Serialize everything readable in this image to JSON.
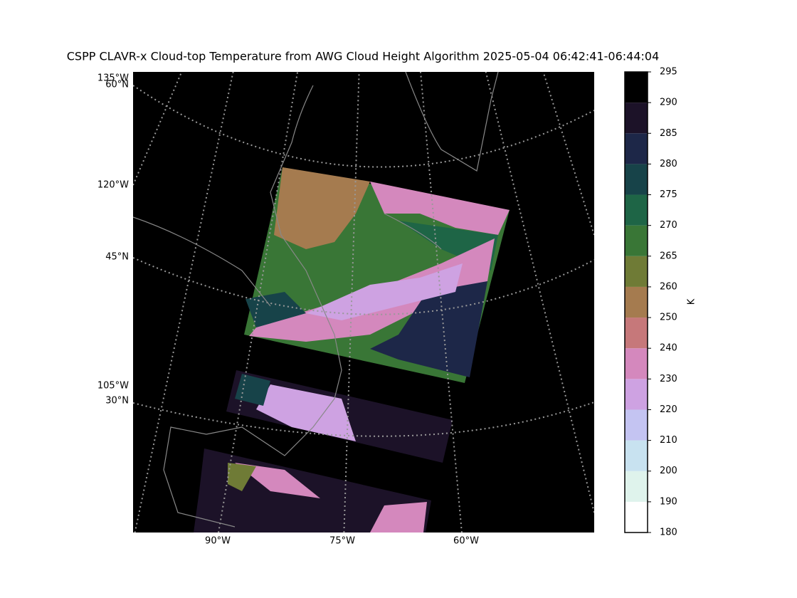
{
  "title": "CSPP CLAVR-x Cloud-top Temperature from AWG Cloud Height Algorithm 2025-05-04 06:42:41-06:44:04",
  "map": {
    "left_labels": [
      "135°W",
      "60°N",
      "120°W",
      "45°N",
      "105°W",
      "30°N"
    ],
    "bottom_labels": [
      "90°W",
      "75°W",
      "60°W"
    ]
  },
  "colorbar": {
    "boundaries": [
      180,
      190,
      200,
      210,
      220,
      230,
      240,
      250,
      260,
      265,
      270,
      275,
      280,
      285,
      290,
      295
    ],
    "colors": [
      "#ffffff",
      "#dff3ec",
      "#c8e2f0",
      "#c4c4f2",
      "#cea2e2",
      "#d488bd",
      "#c6787a",
      "#a57b4f",
      "#6f7b36",
      "#397636",
      "#1e6546",
      "#174349",
      "#1d2748",
      "#1c1228",
      "#000000"
    ],
    "label": "K"
  }
}
